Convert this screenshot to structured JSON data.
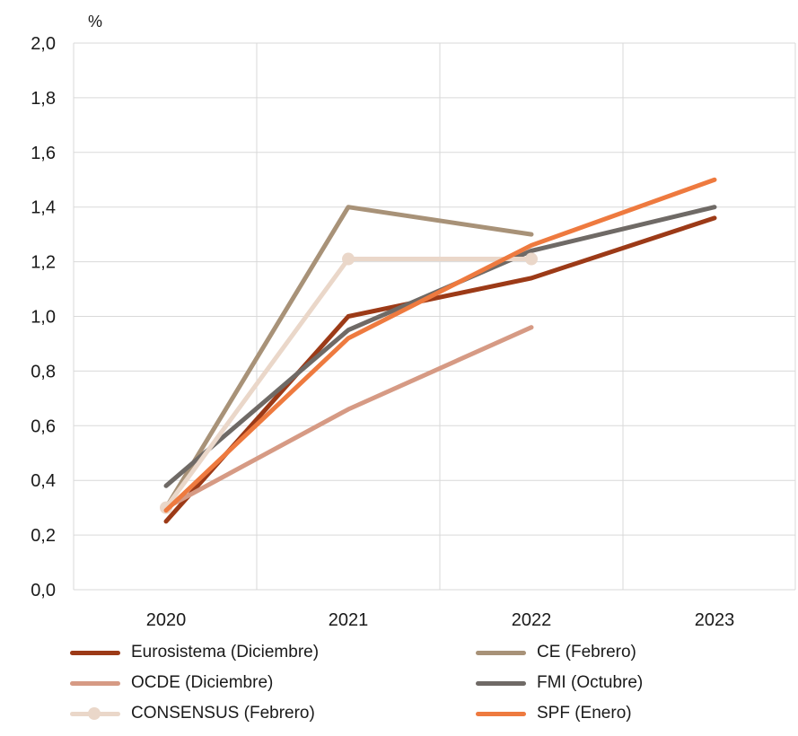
{
  "chart_data": {
    "type": "line",
    "unit": "%",
    "categories": [
      "2020",
      "2021",
      "2022",
      "2023"
    ],
    "ylim": [
      0,
      2.0
    ],
    "yticks": [
      "0,0",
      "0,2",
      "0,4",
      "0,6",
      "0,8",
      "1,0",
      "1,2",
      "1,4",
      "1,6",
      "1,8",
      "2,0"
    ],
    "grid": true,
    "legend_position": "bottom",
    "series": [
      {
        "name": "Eurosistema (Diciembre)",
        "color": "#9c3a17",
        "values": [
          0.25,
          1.0,
          1.14,
          1.36
        ]
      },
      {
        "name": "CE (Febrero)",
        "color": "#a89278",
        "values": [
          0.3,
          1.4,
          1.3,
          null
        ]
      },
      {
        "name": "OCDE (Diciembre)",
        "color": "#d69a84",
        "values": [
          0.3,
          0.66,
          0.96,
          null
        ]
      },
      {
        "name": "FMI (Octubre)",
        "color": "#6f6a66",
        "values": [
          0.38,
          0.95,
          1.24,
          1.4
        ]
      },
      {
        "name": "CONSENSUS (Febrero)",
        "color": "#ead7c9",
        "values": [
          0.3,
          1.21,
          1.21,
          null
        ],
        "markers": true
      },
      {
        "name": "SPF (Enero)",
        "color": "#ee7a3f",
        "values": [
          0.29,
          0.92,
          1.26,
          1.5
        ]
      }
    ]
  }
}
